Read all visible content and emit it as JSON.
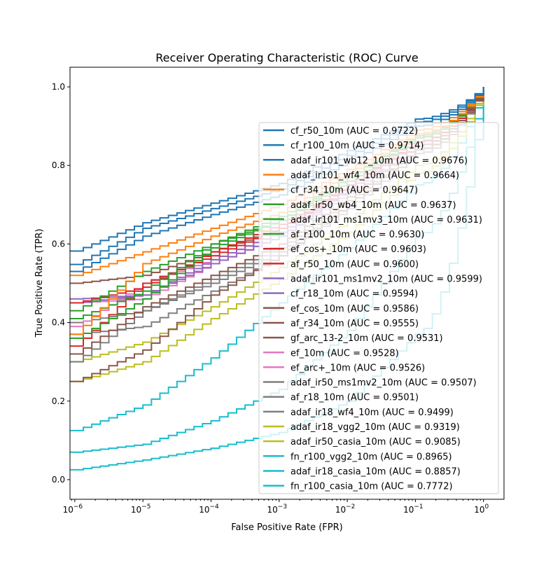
{
  "chart_data": {
    "type": "line",
    "title": "Receiver Operating Characteristic (ROC) Curve",
    "xlabel": "False Positive Rate (FPR)",
    "ylabel": "True Positive Rate (TPR)",
    "xscale": "log",
    "xlim": [
      8.5e-07,
      2.0
    ],
    "ylim": [
      -0.05,
      1.05
    ],
    "x_ticks": [
      1e-06,
      1e-05,
      0.0001,
      0.001,
      0.01,
      0.1,
      1
    ],
    "x_tick_labels": [
      [
        "10",
        "−6"
      ],
      [
        "10",
        "−5"
      ],
      [
        "10",
        "−4"
      ],
      [
        "10",
        "−3"
      ],
      [
        "10",
        "−2"
      ],
      [
        "10",
        "−1"
      ],
      [
        "10",
        "0"
      ]
    ],
    "y_ticks": [
      0.0,
      0.2,
      0.4,
      0.6,
      0.8,
      1.0
    ],
    "y_tick_labels": [
      "0.0",
      "0.2",
      "0.4",
      "0.6",
      "0.8",
      "1.0"
    ],
    "grid": false,
    "legend_position": "center-right",
    "x": [
      1e-06,
      1e-05,
      0.0001,
      0.001,
      0.01,
      0.1,
      1
    ],
    "series": [
      {
        "name": "cf_r50_10m (AUC = 0.9722)",
        "color": "#1f77b4",
        "values": [
          0.582,
          0.654,
          0.704,
          0.754,
          0.838,
          0.918,
          1.0
        ]
      },
      {
        "name": "cf_r100_10m (AUC = 0.9714)",
        "color": "#1f77b4",
        "values": [
          0.548,
          0.64,
          0.69,
          0.74,
          0.825,
          0.91,
          1.0
        ]
      },
      {
        "name": "adaf_ir101_wb12_10m (AUC = 0.9676)",
        "color": "#1f77b4",
        "values": [
          0.53,
          0.62,
          0.675,
          0.725,
          0.81,
          0.9,
          1.0
        ]
      },
      {
        "name": "adaf_ir101_wf4_10m (AUC = 0.9664)",
        "color": "#ff7f0e",
        "values": [
          0.52,
          0.58,
          0.64,
          0.7,
          0.79,
          0.89,
          1.0
        ]
      },
      {
        "name": "cf_r34_10m (AUC = 0.9647)",
        "color": "#ff7f0e",
        "values": [
          0.37,
          0.55,
          0.62,
          0.68,
          0.78,
          0.88,
          1.0
        ]
      },
      {
        "name": "adaf_ir50_wb4_10m (AUC = 0.9637)",
        "color": "#2ca02c",
        "values": [
          0.41,
          0.48,
          0.6,
          0.67,
          0.77,
          0.88,
          1.0
        ]
      },
      {
        "name": "adaf_ir101_ms1mv3_10m (AUC = 0.9631)",
        "color": "#2ca02c",
        "values": [
          0.36,
          0.46,
          0.59,
          0.66,
          0.77,
          0.875,
          1.0
        ]
      },
      {
        "name": "af_r100_10m (AUC = 0.9630)",
        "color": "#2ca02c",
        "values": [
          0.43,
          0.53,
          0.6,
          0.66,
          0.76,
          0.87,
          1.0
        ]
      },
      {
        "name": "ef_cos+_10m (AUC = 0.9603)",
        "color": "#d62728",
        "values": [
          0.45,
          0.49,
          0.58,
          0.65,
          0.75,
          0.87,
          1.0
        ]
      },
      {
        "name": "af_r50_10m (AUC = 0.9600)",
        "color": "#d62728",
        "values": [
          0.34,
          0.5,
          0.57,
          0.64,
          0.75,
          0.86,
          1.0
        ]
      },
      {
        "name": "adaf_ir101_ms1mv2_10m (AUC = 0.9599)",
        "color": "#9467bd",
        "values": [
          0.46,
          0.47,
          0.56,
          0.63,
          0.74,
          0.86,
          1.0
        ]
      },
      {
        "name": "cf_r18_10m (AUC = 0.9594)",
        "color": "#9467bd",
        "values": [
          0.45,
          0.47,
          0.55,
          0.62,
          0.74,
          0.86,
          1.0
        ]
      },
      {
        "name": "ef_cos_10m (AUC = 0.9586)",
        "color": "#8c564b",
        "values": [
          0.5,
          0.52,
          0.58,
          0.64,
          0.74,
          0.86,
          1.0
        ]
      },
      {
        "name": "af_r34_10m (AUC = 0.9555)",
        "color": "#8c564b",
        "values": [
          0.32,
          0.44,
          0.52,
          0.6,
          0.72,
          0.85,
          1.0
        ]
      },
      {
        "name": "gf_arc_13-2_10m (AUC = 0.9531)",
        "color": "#8c564b",
        "values": [
          0.25,
          0.33,
          0.47,
          0.57,
          0.7,
          0.84,
          1.0
        ]
      },
      {
        "name": "ef_10m (AUC = 0.9528)",
        "color": "#e377c2",
        "values": [
          0.39,
          0.5,
          0.56,
          0.63,
          0.74,
          0.86,
          1.0
        ]
      },
      {
        "name": "ef_arc+_10m (AUC = 0.9526)",
        "color": "#e377c2",
        "values": [
          0.45,
          0.46,
          0.55,
          0.62,
          0.73,
          0.85,
          1.0
        ]
      },
      {
        "name": "adaf_ir50_ms1mv2_10m (AUC = 0.9507)",
        "color": "#7f7f7f",
        "values": [
          0.4,
          0.43,
          0.51,
          0.59,
          0.71,
          0.84,
          1.0
        ]
      },
      {
        "name": "af_r18_10m (AUC = 0.9501)",
        "color": "#7f7f7f",
        "values": [
          0.3,
          0.43,
          0.5,
          0.58,
          0.7,
          0.84,
          1.0
        ]
      },
      {
        "name": "adaf_ir18_wf4_10m (AUC = 0.9499)",
        "color": "#7f7f7f",
        "values": [
          0.37,
          0.39,
          0.48,
          0.57,
          0.69,
          0.83,
          1.0
        ]
      },
      {
        "name": "adaf_ir18_vgg2_10m (AUC = 0.9319)",
        "color": "#bcbd22",
        "values": [
          0.3,
          0.35,
          0.44,
          0.54,
          0.66,
          0.8,
          1.0
        ]
      },
      {
        "name": "adaf_ir50_casia_10m (AUC = 0.9085)",
        "color": "#bcbd22",
        "values": [
          0.25,
          0.3,
          0.41,
          0.51,
          0.63,
          0.78,
          1.0
        ]
      },
      {
        "name": "fn_r100_vgg2_10m (AUC = 0.8965)",
        "color": "#17becf",
        "values": [
          0.125,
          0.19,
          0.31,
          0.45,
          0.59,
          0.75,
          1.0
        ]
      },
      {
        "name": "adaf_ir18_casia_10m (AUC = 0.8857)",
        "color": "#17becf",
        "values": [
          0.07,
          0.09,
          0.15,
          0.23,
          0.38,
          0.62,
          1.0
        ]
      },
      {
        "name": "fn_r100_casia_10m (AUC = 0.7772)",
        "color": "#17becf",
        "values": [
          0.025,
          0.05,
          0.08,
          0.12,
          0.2,
          0.37,
          1.0
        ]
      }
    ]
  }
}
